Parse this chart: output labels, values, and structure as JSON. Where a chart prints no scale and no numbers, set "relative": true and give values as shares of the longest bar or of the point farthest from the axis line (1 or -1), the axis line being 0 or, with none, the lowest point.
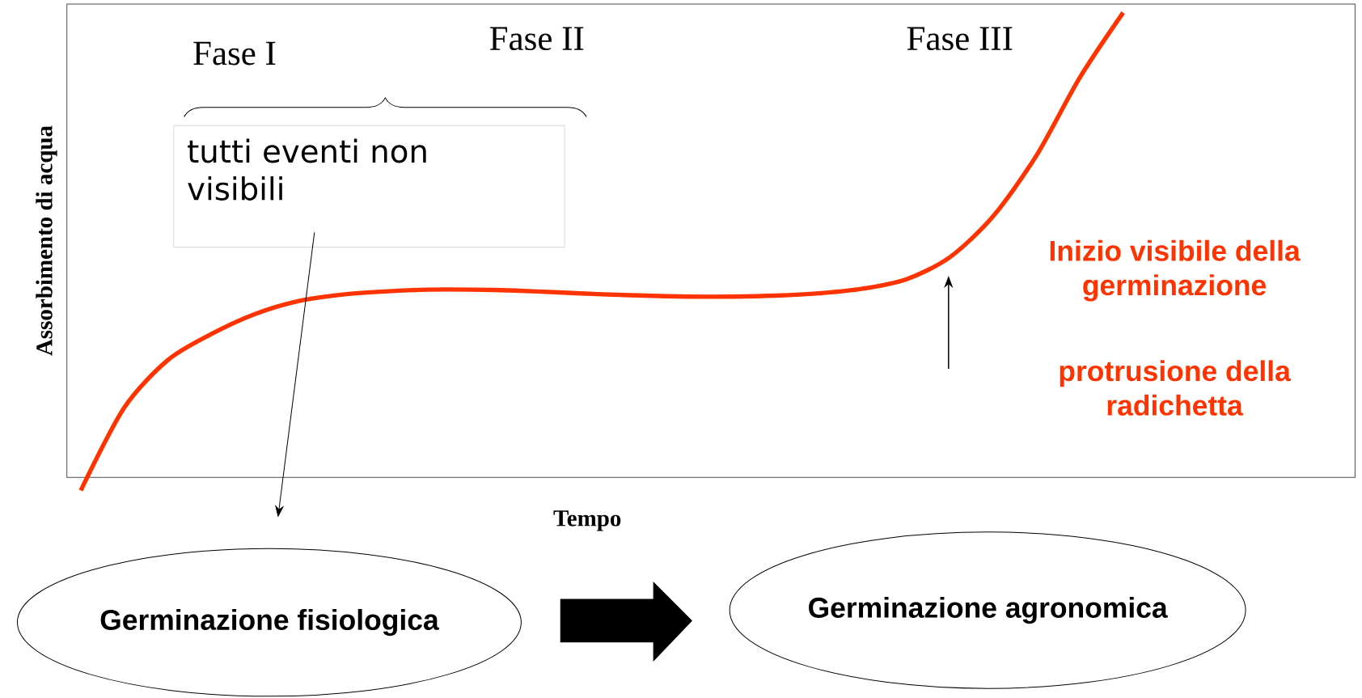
{
  "chart_data": {
    "type": "line",
    "relative": true,
    "xlabel": "Tempo",
    "ylabel": "Assorbimento di acqua",
    "marker": "none",
    "line_style": "solid",
    "categories": [
      null,
      null,
      null,
      null,
      null,
      null,
      null,
      null,
      null,
      null,
      null,
      null,
      null,
      null,
      null,
      null,
      null,
      null,
      null,
      null,
      null,
      null,
      null,
      null,
      null
    ],
    "series": [
      {
        "color": "#ff3300",
        "values": [
          -0.028,
          0.15,
          0.252,
          0.308,
          0.351,
          0.379,
          0.393,
          0.4,
          0.404,
          0.404,
          0.402,
          0.398,
          0.394,
          0.391,
          0.389,
          0.389,
          0.391,
          0.396,
          0.406,
          0.426,
          0.473,
          0.561,
          0.692,
          0.86,
          1.0
        ]
      }
    ],
    "annotations": [
      "Fase I",
      "Fase II",
      "Fase III",
      "tutti eventi non visibili",
      "Inizio visibile della germinazione",
      "protrusione della radichetta",
      "Germinazione fisiologica",
      "Germinazione agronomica"
    ]
  }
}
